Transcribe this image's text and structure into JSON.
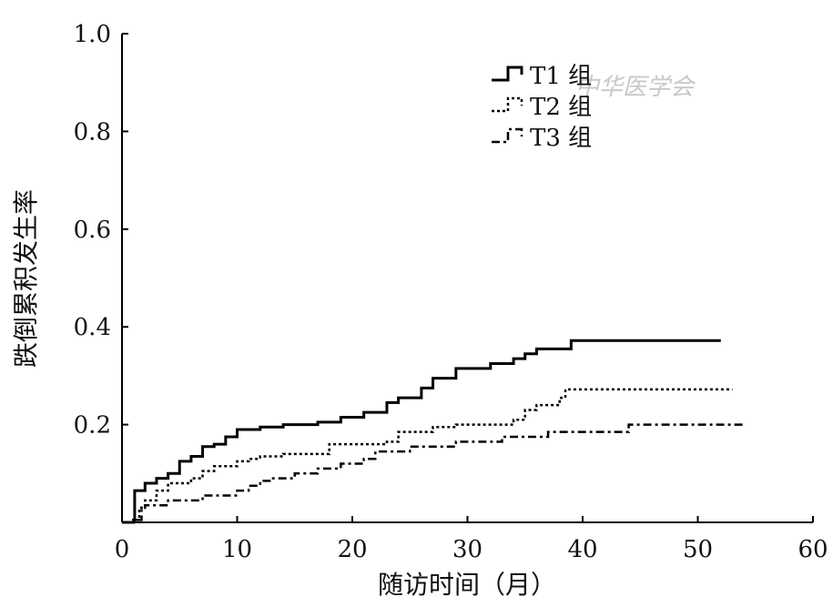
{
  "watermark": "中华医学会",
  "chart_data": {
    "type": "line",
    "step": true,
    "xlabel": "随访时间（月）",
    "ylabel": "跌倒累积发生率",
    "xlim": [
      0,
      60
    ],
    "ylim": [
      0,
      1.0
    ],
    "x_ticks": [
      "0",
      "10",
      "20",
      "30",
      "40",
      "50",
      "60"
    ],
    "y_ticks": [
      "0.2",
      "0.4",
      "0.6",
      "0.8",
      "1.0"
    ],
    "legend_position": "top-right",
    "series": [
      {
        "name": "T1 组",
        "style": "solid",
        "color": "#000000",
        "points": [
          [
            0,
            0
          ],
          [
            1,
            0.005
          ],
          [
            1.1,
            0.065
          ],
          [
            2,
            0.08
          ],
          [
            3,
            0.09
          ],
          [
            4,
            0.1
          ],
          [
            5,
            0.125
          ],
          [
            6,
            0.135
          ],
          [
            7,
            0.155
          ],
          [
            8,
            0.16
          ],
          [
            9,
            0.175
          ],
          [
            10,
            0.19
          ],
          [
            12,
            0.195
          ],
          [
            14,
            0.2
          ],
          [
            17,
            0.205
          ],
          [
            19,
            0.215
          ],
          [
            21,
            0.225
          ],
          [
            23,
            0.245
          ],
          [
            24,
            0.255
          ],
          [
            26,
            0.275
          ],
          [
            27,
            0.295
          ],
          [
            29,
            0.315
          ],
          [
            32,
            0.325
          ],
          [
            34,
            0.335
          ],
          [
            35,
            0.345
          ],
          [
            36,
            0.355
          ],
          [
            39,
            0.372
          ],
          [
            52,
            0.372
          ]
        ]
      },
      {
        "name": "T2 组",
        "style": "dotted",
        "color": "#000000",
        "points": [
          [
            0,
            0
          ],
          [
            1,
            0.005
          ],
          [
            1.5,
            0.03
          ],
          [
            2,
            0.045
          ],
          [
            3,
            0.065
          ],
          [
            4,
            0.08
          ],
          [
            6,
            0.09
          ],
          [
            7,
            0.105
          ],
          [
            8,
            0.115
          ],
          [
            10,
            0.125
          ],
          [
            11,
            0.13
          ],
          [
            12,
            0.135
          ],
          [
            14,
            0.14
          ],
          [
            18,
            0.16
          ],
          [
            23,
            0.165
          ],
          [
            24,
            0.185
          ],
          [
            27,
            0.195
          ],
          [
            29,
            0.2
          ],
          [
            34,
            0.21
          ],
          [
            35,
            0.23
          ],
          [
            36,
            0.24
          ],
          [
            38,
            0.255
          ],
          [
            38.5,
            0.272
          ],
          [
            53,
            0.272
          ]
        ]
      },
      {
        "name": "T3 组",
        "style": "dash-dot",
        "color": "#000000",
        "points": [
          [
            0,
            0
          ],
          [
            1,
            0.005
          ],
          [
            1.7,
            0.025
          ],
          [
            2,
            0.035
          ],
          [
            4,
            0.045
          ],
          [
            7,
            0.055
          ],
          [
            10,
            0.065
          ],
          [
            11,
            0.075
          ],
          [
            12,
            0.085
          ],
          [
            13,
            0.09
          ],
          [
            15,
            0.1
          ],
          [
            17,
            0.11
          ],
          [
            19,
            0.12
          ],
          [
            21,
            0.13
          ],
          [
            22,
            0.145
          ],
          [
            25,
            0.155
          ],
          [
            29,
            0.165
          ],
          [
            33,
            0.175
          ],
          [
            37,
            0.185
          ],
          [
            44,
            0.2
          ],
          [
            54,
            0.2
          ]
        ]
      }
    ]
  }
}
